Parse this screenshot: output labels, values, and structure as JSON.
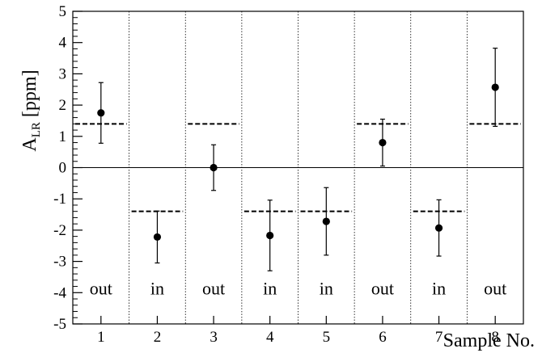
{
  "chart_data": {
    "type": "scatter",
    "ylabel_main": "A",
    "ylabel_sub": "LR",
    "ylabel_unit": " [ppm]",
    "xlabel": "Sample No.",
    "xlim": [
      0.5,
      8.5
    ],
    "ylim": [
      -5,
      5
    ],
    "categories": [
      "1",
      "2",
      "3",
      "4",
      "5",
      "6",
      "7",
      "8"
    ],
    "x": [
      1,
      2,
      3,
      4,
      5,
      6,
      7,
      8
    ],
    "y_ticks": [
      "-5",
      "-4",
      "-3",
      "-2",
      "-1",
      "0",
      "1",
      "2",
      "3",
      "4",
      "5"
    ],
    "y_tick_values": [
      -5,
      -4,
      -3,
      -2,
      -1,
      0,
      1,
      2,
      3,
      4,
      5
    ],
    "series": [
      {
        "values": [
          1.75,
          -2.22,
          0.0,
          -2.17,
          -1.72,
          0.8,
          -1.93,
          2.57
        ],
        "err_low": [
          0.97,
          0.83,
          0.73,
          1.13,
          1.08,
          0.75,
          0.9,
          1.25
        ],
        "err_high": [
          0.97,
          0.83,
          0.73,
          1.13,
          1.08,
          0.75,
          0.9,
          1.25
        ]
      }
    ],
    "expected_level": [
      1.4,
      -1.4,
      1.4,
      -1.4,
      -1.4,
      1.4,
      -1.4,
      1.4
    ],
    "region_labels": [
      "out",
      "in",
      "out",
      "in",
      "in",
      "out",
      "in",
      "out"
    ],
    "region_label_y": -3.85,
    "grid": false,
    "reference_line_y": 0
  }
}
